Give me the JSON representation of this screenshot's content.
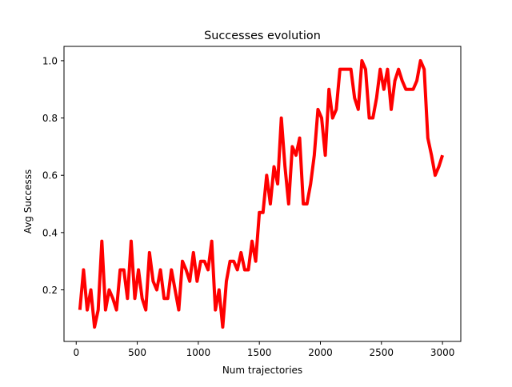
{
  "chart_data": {
    "type": "line",
    "title": "Successes evolution",
    "xlabel": "Num trajectories",
    "ylabel": "Avg Successs",
    "xlim": [
      -100,
      3150
    ],
    "ylim": [
      0.02,
      1.05
    ],
    "xticks": [
      0,
      500,
      1000,
      1500,
      2000,
      2500,
      3000
    ],
    "xtick_labels": [
      "0",
      "500",
      "1000",
      "1500",
      "2000",
      "2500",
      "3000"
    ],
    "yticks": [
      0.2,
      0.4,
      0.6,
      0.8,
      1.0
    ],
    "ytick_labels": [
      "0.2",
      "0.4",
      "0.6",
      "0.8",
      "1.0"
    ],
    "grid": false,
    "series": [
      {
        "color": "#ff0000",
        "x": [
          30,
          60,
          90,
          120,
          150,
          180,
          210,
          240,
          270,
          300,
          330,
          360,
          390,
          420,
          450,
          480,
          510,
          540,
          570,
          600,
          630,
          660,
          690,
          720,
          750,
          780,
          810,
          840,
          870,
          900,
          930,
          960,
          990,
          1020,
          1050,
          1080,
          1110,
          1140,
          1170,
          1200,
          1230,
          1260,
          1290,
          1320,
          1350,
          1380,
          1410,
          1440,
          1470,
          1500,
          1530,
          1560,
          1590,
          1620,
          1650,
          1680,
          1710,
          1740,
          1770,
          1800,
          1830,
          1860,
          1890,
          1920,
          1950,
          1980,
          2010,
          2040,
          2070,
          2100,
          2130,
          2160,
          2190,
          2220,
          2250,
          2280,
          2310,
          2340,
          2370,
          2400,
          2430,
          2460,
          2490,
          2520,
          2550,
          2580,
          2610,
          2640,
          2670,
          2700,
          2730,
          2760,
          2790,
          2820,
          2850,
          2880,
          2910,
          2940,
          2970,
          3000
        ],
        "y": [
          0.13,
          0.27,
          0.13,
          0.2,
          0.07,
          0.13,
          0.37,
          0.13,
          0.2,
          0.17,
          0.13,
          0.27,
          0.27,
          0.17,
          0.37,
          0.17,
          0.27,
          0.17,
          0.13,
          0.33,
          0.23,
          0.2,
          0.27,
          0.17,
          0.17,
          0.27,
          0.2,
          0.13,
          0.3,
          0.27,
          0.23,
          0.33,
          0.23,
          0.3,
          0.3,
          0.27,
          0.37,
          0.13,
          0.2,
          0.07,
          0.23,
          0.3,
          0.3,
          0.27,
          0.33,
          0.27,
          0.27,
          0.37,
          0.3,
          0.47,
          0.47,
          0.6,
          0.5,
          0.63,
          0.57,
          0.8,
          0.63,
          0.5,
          0.7,
          0.67,
          0.73,
          0.5,
          0.5,
          0.57,
          0.67,
          0.83,
          0.8,
          0.67,
          0.9,
          0.8,
          0.83,
          0.97,
          0.97,
          0.97,
          0.97,
          0.87,
          0.83,
          1.0,
          0.97,
          0.8,
          0.8,
          0.87,
          0.97,
          0.9,
          0.97,
          0.83,
          0.93,
          0.97,
          0.93,
          0.9,
          0.9,
          0.9,
          0.93,
          1.0,
          0.97,
          0.73,
          0.67,
          0.6,
          0.63,
          0.67
        ]
      }
    ]
  }
}
